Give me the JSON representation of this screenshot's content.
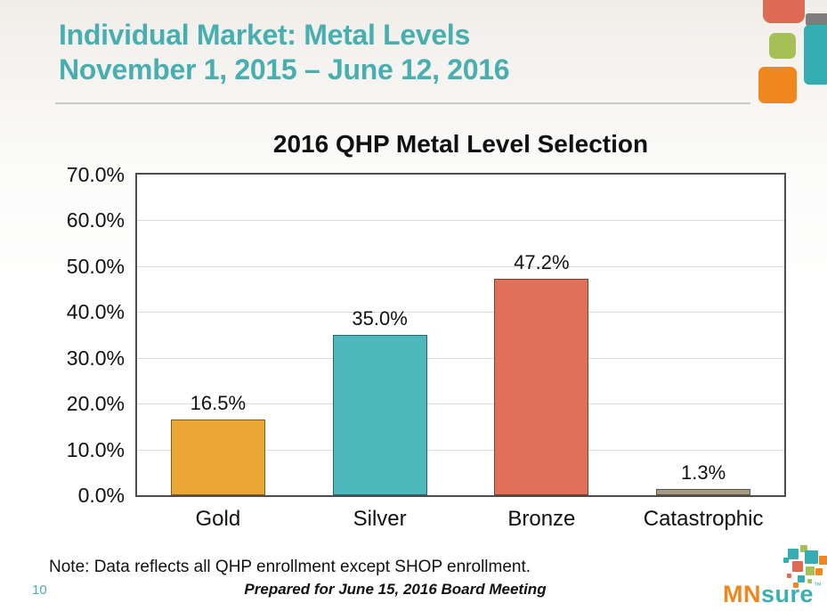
{
  "slide": {
    "title_line1": "Individual Market: Metal Levels",
    "title_line2": "November 1, 2015 – June 12, 2016",
    "note": "Note: Data reflects all QHP enrollment except SHOP enrollment.",
    "page_number": "10",
    "footer": "Prepared for June 15, 2016 Board Meeting"
  },
  "colors": {
    "title_teal": "#48AEB0",
    "plot_border": "#4D4D4D",
    "grid": "#DCDCDC",
    "decor_salmon": "#DC6A55",
    "decor_gray": "#7D7D7D",
    "decor_teal": "#35AEB3",
    "decor_green": "#A5C054",
    "logo_orange": "#F0861E",
    "logo_teal": "#3BAFB2"
  },
  "chart_data": {
    "type": "bar",
    "title": "2016 QHP Metal Level Selection",
    "categories": [
      "Gold",
      "Silver",
      "Bronze",
      "Catastrophic"
    ],
    "values": [
      16.5,
      35.0,
      47.2,
      1.3
    ],
    "value_labels": [
      "16.5%",
      "35.0%",
      "47.2%",
      "1.3%"
    ],
    "bar_colors": [
      "#EAA733",
      "#4DB9BC",
      "#E1705A",
      "#A79B82"
    ],
    "xlabel": "",
    "ylabel": "",
    "ylim": [
      0,
      70
    ],
    "ytick_step": 10,
    "ytick_labels": [
      "70.0%",
      "60.0%",
      "50.0%",
      "40.0%",
      "30.0%",
      "20.0%",
      "10.0%",
      "0.0%"
    ],
    "grid": true,
    "legend": false
  },
  "logo": {
    "mn": "MN",
    "sure": "sure",
    "tm": "™"
  }
}
